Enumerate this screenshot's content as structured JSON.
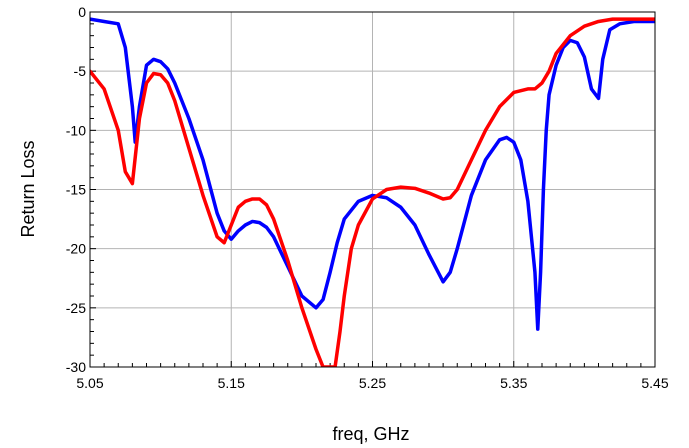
{
  "chart_data": {
    "type": "line",
    "title": "",
    "xlabel": "freq, GHz",
    "ylabel": "Return Loss",
    "xlim": [
      5.05,
      5.45
    ],
    "ylim": [
      -30,
      0
    ],
    "grid": true,
    "xticks": [
      "5.05",
      "5.15",
      "5.25",
      "5.35",
      "5.45"
    ],
    "yticks": [
      "0",
      "-5",
      "-10",
      "-15",
      "-20",
      "-25",
      "-30"
    ],
    "series": [
      {
        "color": "#0000ff",
        "x": [
          5.05,
          5.06,
          5.07,
          5.075,
          5.08,
          5.082,
          5.085,
          5.09,
          5.095,
          5.1,
          5.105,
          5.11,
          5.12,
          5.13,
          5.14,
          5.145,
          5.15,
          5.155,
          5.16,
          5.165,
          5.17,
          5.175,
          5.18,
          5.19,
          5.2,
          5.21,
          5.215,
          5.22,
          5.225,
          5.23,
          5.24,
          5.25,
          5.26,
          5.27,
          5.28,
          5.29,
          5.3,
          5.305,
          5.31,
          5.32,
          5.33,
          5.34,
          5.345,
          5.35,
          5.355,
          5.36,
          5.365,
          5.367,
          5.369,
          5.371,
          5.373,
          5.375,
          5.38,
          5.385,
          5.39,
          5.395,
          5.4,
          5.405,
          5.41,
          5.413,
          5.418,
          5.425,
          5.435,
          5.45
        ],
        "y": [
          -0.6,
          -0.8,
          -1.0,
          -3.0,
          -8.0,
          -11.0,
          -8.0,
          -4.5,
          -4.0,
          -4.2,
          -4.8,
          -6.0,
          -9.0,
          -12.5,
          -17.0,
          -18.5,
          -19.2,
          -18.5,
          -18.0,
          -17.7,
          -17.8,
          -18.2,
          -19.0,
          -21.5,
          -24.0,
          -25.0,
          -24.3,
          -22.0,
          -19.5,
          -17.5,
          -16.0,
          -15.5,
          -15.7,
          -16.5,
          -18.0,
          -20.5,
          -22.8,
          -22.0,
          -20.0,
          -15.5,
          -12.5,
          -10.8,
          -10.6,
          -11.0,
          -12.5,
          -16.0,
          -22.0,
          -26.8,
          -22.0,
          -15.0,
          -10.0,
          -7.0,
          -4.5,
          -3.0,
          -2.4,
          -2.6,
          -3.8,
          -6.5,
          -7.3,
          -4.0,
          -1.5,
          -1.0,
          -0.8,
          -0.8
        ]
      },
      {
        "color": "#ff0000",
        "x": [
          5.05,
          5.06,
          5.07,
          5.075,
          5.08,
          5.085,
          5.09,
          5.095,
          5.1,
          5.105,
          5.11,
          5.12,
          5.13,
          5.14,
          5.145,
          5.15,
          5.155,
          5.16,
          5.165,
          5.17,
          5.175,
          5.18,
          5.19,
          5.2,
          5.21,
          5.215,
          5.2185,
          5.2235,
          5.227,
          5.23,
          5.235,
          5.24,
          5.25,
          5.26,
          5.27,
          5.28,
          5.29,
          5.3,
          5.305,
          5.31,
          5.32,
          5.33,
          5.34,
          5.35,
          5.36,
          5.365,
          5.37,
          5.375,
          5.38,
          5.39,
          5.4,
          5.41,
          5.42,
          5.43,
          5.44,
          5.45
        ],
        "y": [
          -5.0,
          -6.5,
          -10.0,
          -13.5,
          -14.5,
          -9.0,
          -6.0,
          -5.2,
          -5.3,
          -6.0,
          -7.5,
          -11.5,
          -15.5,
          -19.0,
          -19.5,
          -18.0,
          -16.5,
          -16.0,
          -15.8,
          -15.8,
          -16.3,
          -17.5,
          -21.0,
          -25.0,
          -28.5,
          -30.0,
          -30.0,
          -30.0,
          -27.0,
          -24.0,
          -20.0,
          -18.0,
          -15.8,
          -15.0,
          -14.8,
          -14.9,
          -15.3,
          -15.8,
          -15.7,
          -15.0,
          -12.5,
          -10.0,
          -8.0,
          -6.8,
          -6.5,
          -6.5,
          -6.0,
          -5.0,
          -3.5,
          -2.0,
          -1.2,
          -0.8,
          -0.6,
          -0.6,
          -0.6,
          -0.6
        ]
      }
    ]
  }
}
